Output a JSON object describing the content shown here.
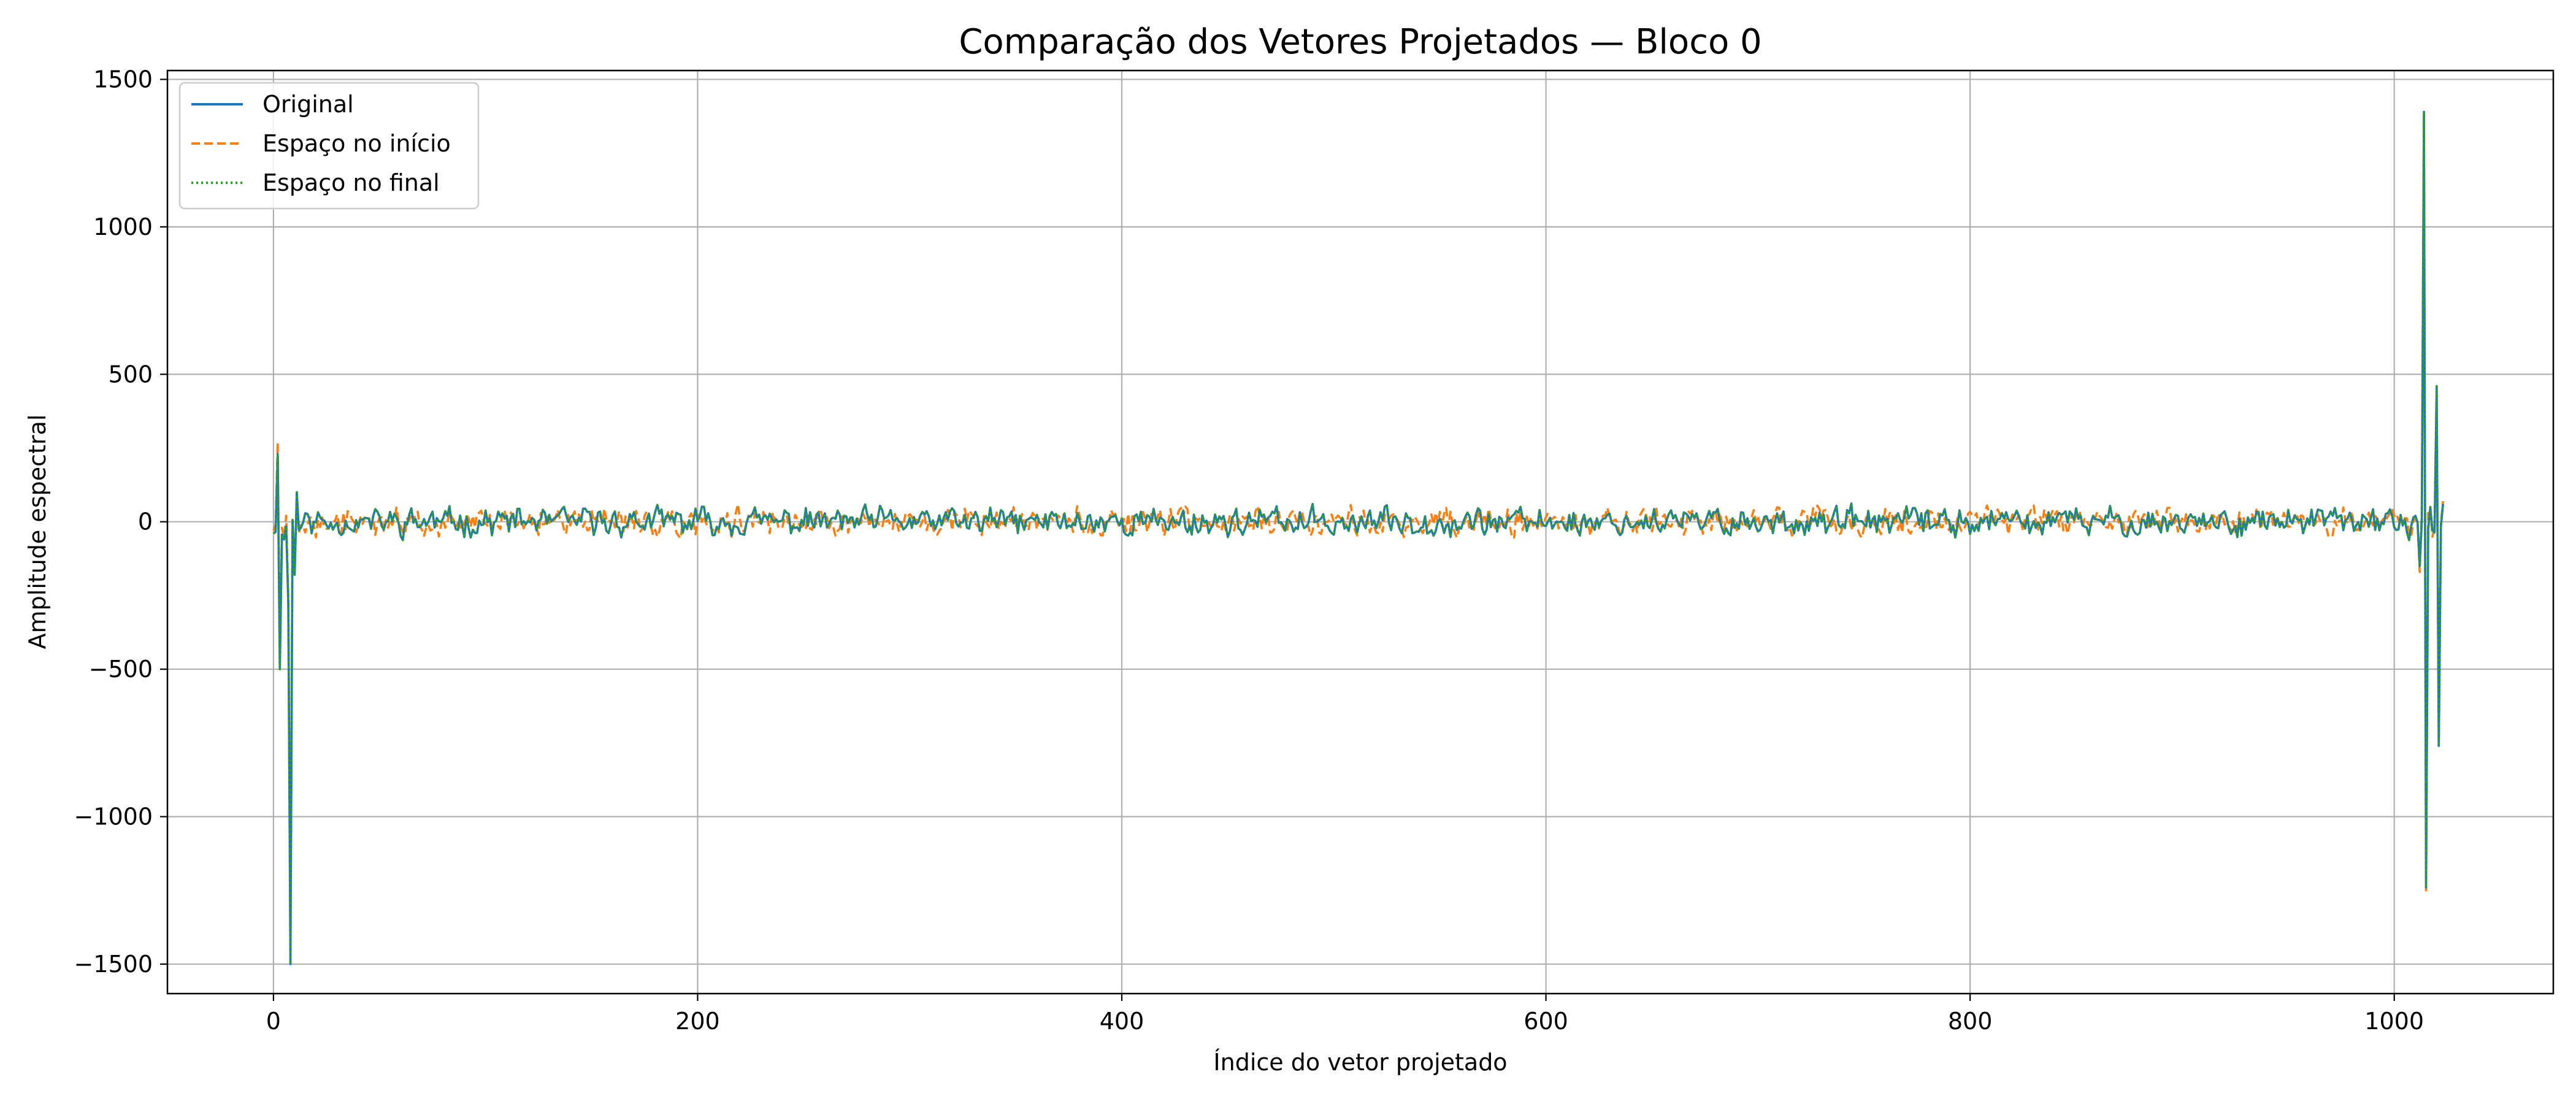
{
  "chart_data": {
    "type": "line",
    "title": "Comparação dos Vetores Projetados — Bloco 0",
    "xlabel": "Índice do vetor projetado",
    "ylabel": "Amplitude espectral",
    "xlim": [
      -50,
      1075
    ],
    "ylim": [
      -1600,
      1530
    ],
    "xticks": [
      0,
      200,
      400,
      600,
      800,
      1000
    ],
    "yticks": [
      -1500,
      -1000,
      -500,
      0,
      500,
      1000,
      1500
    ],
    "xtick_labels": [
      "0",
      "200",
      "400",
      "600",
      "800",
      "1000"
    ],
    "ytick_labels": [
      "−1500",
      "−1000",
      "−500",
      "0",
      "500",
      "1000",
      "1500"
    ],
    "grid": true,
    "legend_position": "top-left",
    "n_points": 1024,
    "series": [
      {
        "name": "Original",
        "color": "#1f77b4",
        "style": "solid",
        "key_points": [
          [
            0,
            -40
          ],
          [
            2,
            230
          ],
          [
            3,
            -500
          ],
          [
            5,
            -60
          ],
          [
            7,
            -280
          ],
          [
            8,
            -1500
          ],
          [
            10,
            -180
          ],
          [
            11,
            100
          ],
          [
            13,
            -20
          ],
          [
            1010,
            20
          ],
          [
            1012,
            -150
          ],
          [
            1014,
            1390
          ],
          [
            1015,
            -1240
          ],
          [
            1017,
            50
          ],
          [
            1020,
            460
          ],
          [
            1021,
            -760
          ],
          [
            1023,
            60
          ]
        ],
        "noise_amplitude": 35
      },
      {
        "name": "Espaço no início",
        "color": "#ff7f0e",
        "style": "dashed",
        "key_points": [
          [
            0,
            -30
          ],
          [
            2,
            270
          ],
          [
            3,
            -470
          ],
          [
            5,
            -50
          ],
          [
            7,
            -260
          ],
          [
            8,
            -1450
          ],
          [
            10,
            -160
          ],
          [
            11,
            90
          ],
          [
            13,
            -10
          ],
          [
            1010,
            10
          ],
          [
            1012,
            -170
          ],
          [
            1014,
            1380
          ],
          [
            1015,
            -1250
          ],
          [
            1017,
            40
          ],
          [
            1020,
            450
          ],
          [
            1021,
            -740
          ],
          [
            1023,
            70
          ]
        ],
        "noise_amplitude": 35
      },
      {
        "name": "Espaço no final",
        "color": "#2ca02c",
        "style": "dotted",
        "key_points": [
          [
            0,
            -40
          ],
          [
            2,
            230
          ],
          [
            3,
            -500
          ],
          [
            5,
            -60
          ],
          [
            7,
            -280
          ],
          [
            8,
            -1500
          ],
          [
            10,
            -180
          ],
          [
            11,
            100
          ],
          [
            13,
            -20
          ],
          [
            1010,
            20
          ],
          [
            1012,
            -150
          ],
          [
            1014,
            1390
          ],
          [
            1015,
            -1240
          ],
          [
            1017,
            50
          ],
          [
            1020,
            460
          ],
          [
            1021,
            -760
          ],
          [
            1023,
            60
          ]
        ],
        "noise_amplitude": 35
      }
    ]
  }
}
